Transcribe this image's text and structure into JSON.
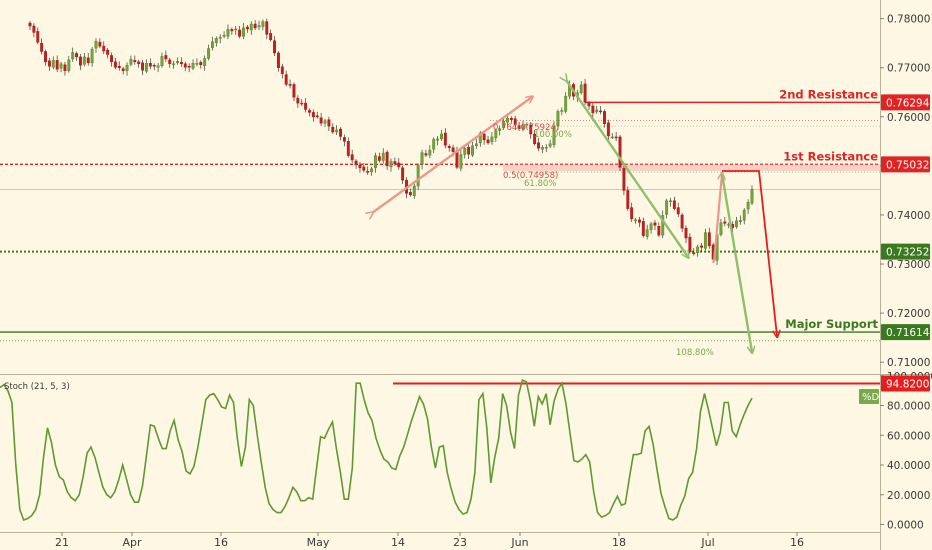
{
  "chart_data": [
    {
      "type": "candlestick",
      "x_ticks": [
        "21",
        "Apr",
        "16",
        "May",
        "14",
        "23",
        "Jun",
        "18",
        "Jul",
        "16"
      ],
      "y_ticks": [
        "0.78000",
        "0.77000",
        "0.76000",
        "0.75000",
        "0.74000",
        "0.73000",
        "0.72000",
        "0.71000"
      ],
      "ylim": [
        0.7078,
        0.7838
      ],
      "grid": false,
      "levels": [
        {
          "label": "2nd Resistance",
          "price": 0.76294,
          "tag": "0.76294",
          "color": "#e02424"
        },
        {
          "label": "1st Resistance",
          "price": 0.75032,
          "tag": "0.75032",
          "color": "#e02424"
        },
        {
          "label": "",
          "price": 0.73252,
          "tag": "0.73252",
          "color": "#3a7a1e"
        },
        {
          "label": "Major Support",
          "price": 0.71614,
          "tag": "0.71614",
          "color": "#3a7a1e"
        }
      ],
      "fib_labels": [
        "0.764(0.75924)",
        "100.00%",
        "0.5(0.74958)",
        "61.80%",
        "108.80%"
      ],
      "series": [
        {
          "close": [
            0.7785,
            0.7772,
            0.7752,
            0.7733,
            0.7712,
            0.7703,
            0.7715,
            0.7697,
            0.7708,
            0.7694,
            0.7716,
            0.7731,
            0.7722,
            0.7705,
            0.7722,
            0.771,
            0.7738,
            0.7754,
            0.7744,
            0.7734,
            0.7727,
            0.7712,
            0.7701,
            0.77,
            0.7694,
            0.7705,
            0.7717,
            0.7712,
            0.7708,
            0.7695,
            0.7709,
            0.7703,
            0.7703,
            0.7704,
            0.7723,
            0.7718,
            0.7708,
            0.7708,
            0.7713,
            0.7708,
            0.7701,
            0.7701,
            0.7709,
            0.7709,
            0.7706,
            0.7719,
            0.7739,
            0.7753,
            0.776,
            0.7762,
            0.7766,
            0.7778,
            0.7775,
            0.7779,
            0.7764,
            0.7781,
            0.7779,
            0.7789,
            0.7781,
            0.7786,
            0.7794,
            0.7768,
            0.7757,
            0.773,
            0.77,
            0.7688,
            0.7666,
            0.7664,
            0.764,
            0.7628,
            0.7626,
            0.7615,
            0.7609,
            0.76,
            0.76,
            0.7587,
            0.7592,
            0.7581,
            0.7569,
            0.7573,
            0.756,
            0.755,
            0.7521,
            0.7512,
            0.7502,
            0.7496,
            0.7491,
            0.7488,
            0.7494,
            0.7521,
            0.7511,
            0.7526,
            0.75,
            0.7509,
            0.7504,
            0.7498,
            0.7471,
            0.7444,
            0.7441,
            0.7459,
            0.7501,
            0.7527,
            0.7522,
            0.7532,
            0.7554,
            0.7555,
            0.7565,
            0.7542,
            0.7537,
            0.7529,
            0.7497,
            0.7523,
            0.7536,
            0.7524,
            0.7541,
            0.7545,
            0.7567,
            0.7553,
            0.7547,
            0.7559,
            0.7572,
            0.7576,
            0.7591,
            0.7597,
            0.7594,
            0.7584,
            0.7576,
            0.7582,
            0.7585,
            0.7565,
            0.7545,
            0.7536,
            0.7538,
            0.7538,
            0.7545,
            0.7581,
            0.7611,
            0.7613,
            0.7642,
            0.7664,
            0.7642,
            0.7649,
            0.7665,
            0.763,
            0.7622,
            0.7608,
            0.7614,
            0.7611,
            0.7586,
            0.7561,
            0.7559,
            0.7557,
            0.7497,
            0.745,
            0.7413,
            0.7392,
            0.739,
            0.7385,
            0.7358,
            0.737,
            0.7382,
            0.7379,
            0.7359,
            0.7399,
            0.7429,
            0.7429,
            0.7413,
            0.7402,
            0.7373,
            0.7353,
            0.7325,
            0.7323,
            0.7335,
            0.7334,
            0.7364,
            0.7337,
            0.731,
            0.736,
            0.7384,
            0.7383,
            0.7381,
            0.7374,
            0.7388,
            0.7389,
            0.741,
            0.7426,
            0.7452
          ]
        }
      ]
    },
    {
      "type": "line",
      "title": "Stoch (21, 5, 3)",
      "legend": [
        "%D"
      ],
      "y_ticks": [
        "100.0000",
        "80.0000",
        "60.0000",
        "40.0000",
        "20.0000",
        "0.0000"
      ],
      "ylim": [
        -2,
        105
      ],
      "grid": false,
      "level": {
        "value": 94.82,
        "tag": "94.8200"
      },
      "series": [
        {
          "name": "%D",
          "values": [
            92,
            94,
            90,
            82,
            40,
            10,
            3,
            4,
            6,
            10,
            20,
            45,
            65,
            55,
            40,
            32,
            30,
            22,
            18,
            16,
            20,
            32,
            48,
            52,
            45,
            35,
            25,
            20,
            18,
            22,
            30,
            40,
            30,
            20,
            15,
            15,
            26,
            46,
            67,
            66,
            58,
            51,
            51,
            63,
            70,
            57,
            49,
            36,
            34,
            39,
            52,
            68,
            84,
            87,
            88,
            84,
            79,
            78,
            87,
            82,
            57,
            39,
            52,
            84,
            80,
            60,
            42,
            25,
            14,
            10,
            8,
            8,
            12,
            18,
            25,
            22,
            16,
            16,
            18,
            17,
            38,
            59,
            58,
            64,
            69,
            51,
            35,
            17,
            17,
            38,
            95,
            95,
            84,
            75,
            70,
            58,
            50,
            44,
            42,
            38,
            37,
            46,
            52,
            61,
            70,
            78,
            86,
            81,
            71,
            52,
            38,
            52,
            53,
            35,
            24,
            15,
            10,
            7,
            8,
            17,
            35,
            84,
            88,
            65,
            28,
            45,
            58,
            88,
            80,
            62,
            51,
            87,
            97,
            96,
            83,
            66,
            86,
            81,
            88,
            67,
            83,
            91,
            95,
            81,
            62,
            43,
            42,
            44,
            47,
            42,
            22,
            8,
            5,
            6,
            8,
            14,
            19,
            13,
            14,
            31,
            47,
            47,
            48,
            63,
            66,
            54,
            37,
            21,
            12,
            4,
            3,
            5,
            13,
            19,
            31,
            35,
            51,
            76,
            88,
            77,
            65,
            53,
            62,
            82,
            82,
            63,
            59,
            67,
            74,
            80,
            85
          ]
        }
      ]
    }
  ]
}
